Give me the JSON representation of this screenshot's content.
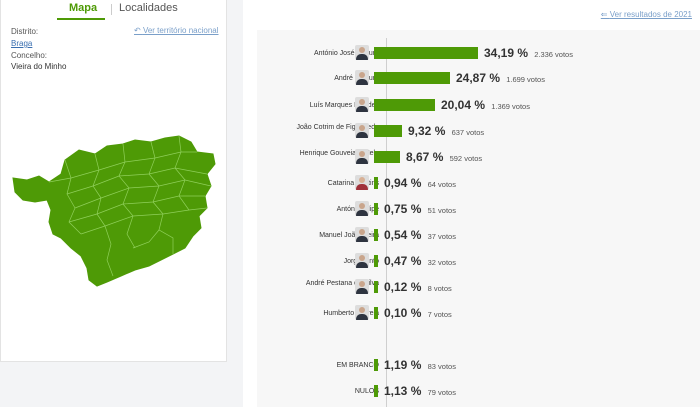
{
  "tabs": {
    "mapa": "Mapa",
    "localidades": "Localidades"
  },
  "location": {
    "distrito_label": "Distrito:",
    "distrito_value": "Braga",
    "concelho_label": "Concelho:",
    "concelho_value": "Vieira do Minho",
    "national_link": "Ver território nacional"
  },
  "back_link": "Ver resultados de 2021",
  "colors": {
    "accent": "#4e9a06",
    "map_fill": "#4e9a06",
    "link": "#7a9fc9"
  },
  "results": [
    {
      "name": "António José Seguro",
      "pct": "34,19 %",
      "votes": "2.336 votos",
      "pct_value": 34.19,
      "avatar": "man-glasses"
    },
    {
      "name": "André Ventura",
      "pct": "24,87 %",
      "votes": "1.699 votos",
      "pct_value": 24.87,
      "avatar": "man"
    },
    {
      "name": "Luís Marques Mendes",
      "pct": "20,04 %",
      "votes": "1.369 votos",
      "pct_value": 20.04,
      "avatar": "man"
    },
    {
      "name": "João Cotrim de Figueiredo",
      "pct": "9,32 %",
      "votes": "637 votos",
      "pct_value": 9.32,
      "avatar": "man"
    },
    {
      "name": "Henrique Gouveia e Melo",
      "pct": "8,67 %",
      "votes": "592 votos",
      "pct_value": 8.67,
      "avatar": "man"
    },
    {
      "name": "Catarina Martins",
      "pct": "0,94 %",
      "votes": "64 votos",
      "pct_value": 0.94,
      "avatar": "woman"
    },
    {
      "name": "António Filipe",
      "pct": "0,75 %",
      "votes": "51 votos",
      "pct_value": 0.75,
      "avatar": "man"
    },
    {
      "name": "Manuel João Vieira",
      "pct": "0,54 %",
      "votes": "37 votos",
      "pct_value": 0.54,
      "avatar": "man"
    },
    {
      "name": "Jorge Pinto",
      "pct": "0,47 %",
      "votes": "32 votos",
      "pct_value": 0.47,
      "avatar": "man"
    },
    {
      "name": "André Pestana da Silva",
      "pct": "0,12 %",
      "votes": "8 votos",
      "pct_value": 0.12,
      "avatar": "man"
    },
    {
      "name": "Humberto Correia",
      "pct": "0,10 %",
      "votes": "7 votos",
      "pct_value": 0.1,
      "avatar": "man"
    },
    {
      "name": "EM BRANCO",
      "pct": "1,19 %",
      "votes": "83 votos",
      "pct_value": 1.19,
      "avatar": ""
    },
    {
      "name": "NULOS",
      "pct": "1,13 %",
      "votes": "79 votos",
      "pct_value": 1.13,
      "avatar": ""
    }
  ]
}
